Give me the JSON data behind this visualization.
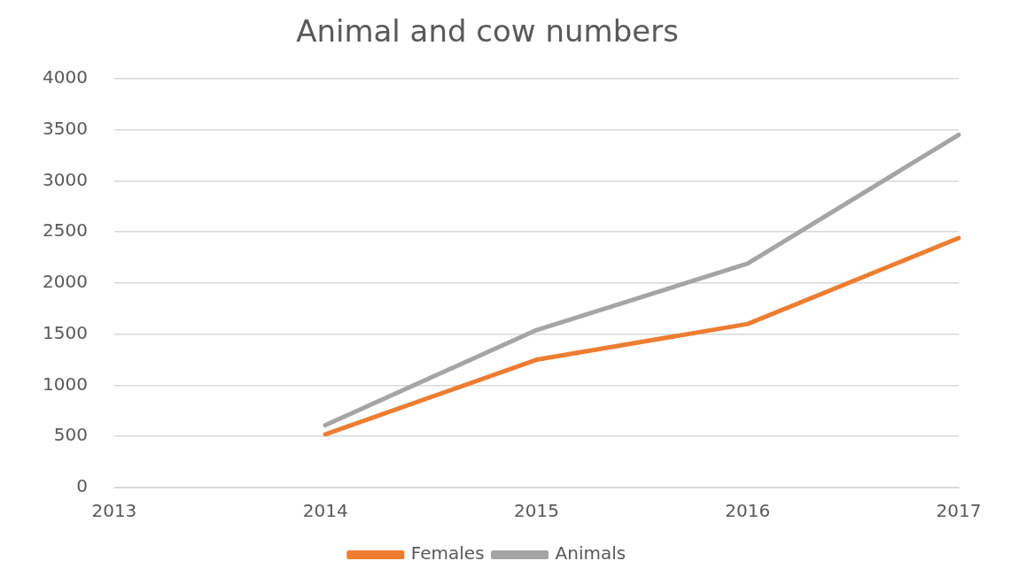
{
  "chart_data": {
    "type": "line",
    "title": "Animal and cow numbers",
    "categories": [
      "2013",
      "2014",
      "2015",
      "2016",
      "2017"
    ],
    "series": [
      {
        "name": "Females",
        "color": "#ed7d31",
        "values": [
          null,
          520,
          1250,
          1600,
          2440
        ]
      },
      {
        "name": "Animals",
        "color": "#a5a5a5",
        "values": [
          null,
          610,
          1540,
          2190,
          3450
        ]
      }
    ],
    "ylim": [
      0,
      4000
    ],
    "yticks": [
      0,
      500,
      1000,
      1500,
      2000,
      2500,
      3000,
      3500,
      4000
    ],
    "grid": "y",
    "legend": "bottom",
    "marker": "none",
    "line_style": "solid"
  }
}
